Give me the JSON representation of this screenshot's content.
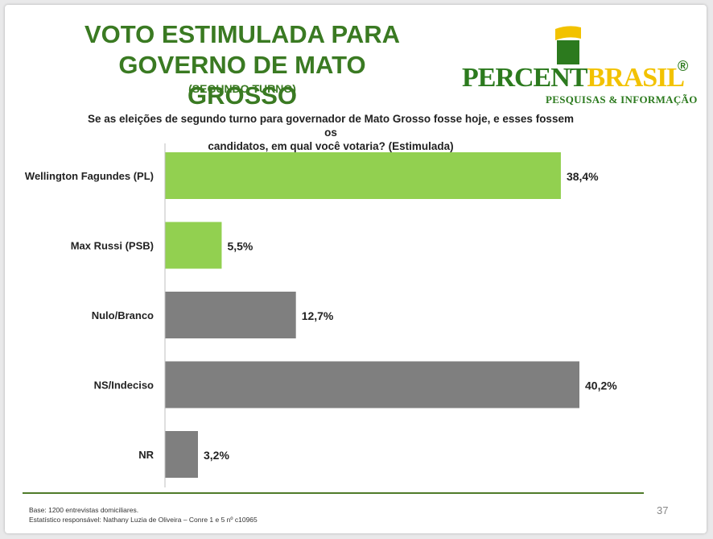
{
  "header": {
    "title_line1": "VOTO ESTIMULADA PARA",
    "title_line2": "GOVERNO DE MATO GROSSO",
    "subtitle": "(SEGUNDO TURNO)"
  },
  "logo": {
    "word_part1": "PERCENT",
    "word_part2": "BRASIL",
    "registered": "®",
    "tagline": "PESQUISAS & INFORMAÇÃO"
  },
  "question": {
    "line1": "Se as eleições de segundo turno para governador de Mato Grosso fosse hoje, e esses fossem os",
    "line2": "candidatos, em qual você votaria? (Estimulada)"
  },
  "colors": {
    "title_green": "#3a7a22",
    "candidate_bar": "#92d050",
    "other_bar": "#7f7f7f",
    "rule_green": "#4f7b2a"
  },
  "chart_data": {
    "type": "bar",
    "orientation": "horizontal",
    "categories": [
      "Wellington Fagundes (PL)",
      "Max Russi (PSB)",
      "Nulo/Branco",
      "NS/Indeciso",
      "NR"
    ],
    "values": [
      38.4,
      5.5,
      12.7,
      40.2,
      3.2
    ],
    "value_labels": [
      "38,4%",
      "5,5%",
      "12,7%",
      "40,2%",
      "3,2%"
    ],
    "bar_colors": [
      "#92d050",
      "#92d050",
      "#7f7f7f",
      "#7f7f7f",
      "#7f7f7f"
    ],
    "xlim": [
      0,
      40.2
    ],
    "grid": false,
    "legend": "none"
  },
  "footer": {
    "base": "Base: 1200 entrevistas domiciliares.",
    "statistician": "Estatístico responsável: Nathany Luzia de Oliveira – Conre 1 e 5 nº c10965",
    "page": "37"
  }
}
